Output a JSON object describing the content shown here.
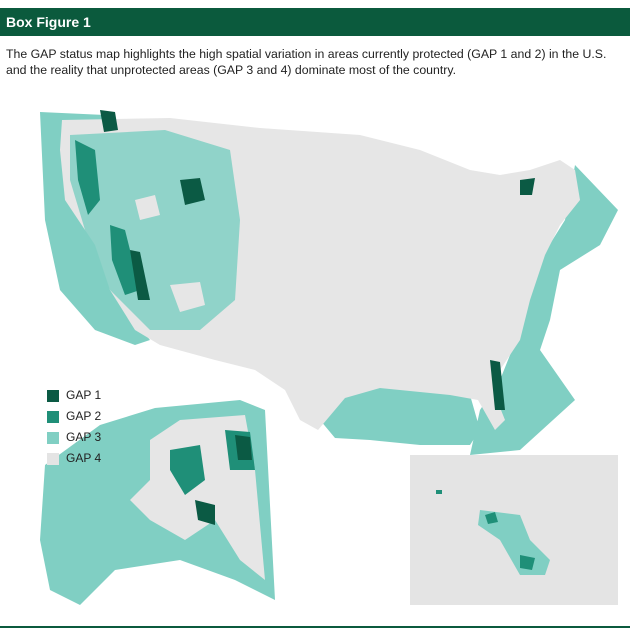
{
  "header": {
    "title": "Box Figure 1"
  },
  "caption": [
    "The GAP status map highlights the high spatial variation in areas currently protected (GAP 1 and 2) in the U.S.",
    "and the reality that unprotected areas (GAP 3 and 4) dominate most of the country."
  ],
  "legend": {
    "items": [
      {
        "label": "GAP 1",
        "color": "#0b5a44"
      },
      {
        "label": "GAP 2",
        "color": "#1f8f78"
      },
      {
        "label": "GAP 3",
        "color": "#80cfc3"
      },
      {
        "label": "GAP 4",
        "color": "#e4e4e4"
      }
    ]
  }
}
